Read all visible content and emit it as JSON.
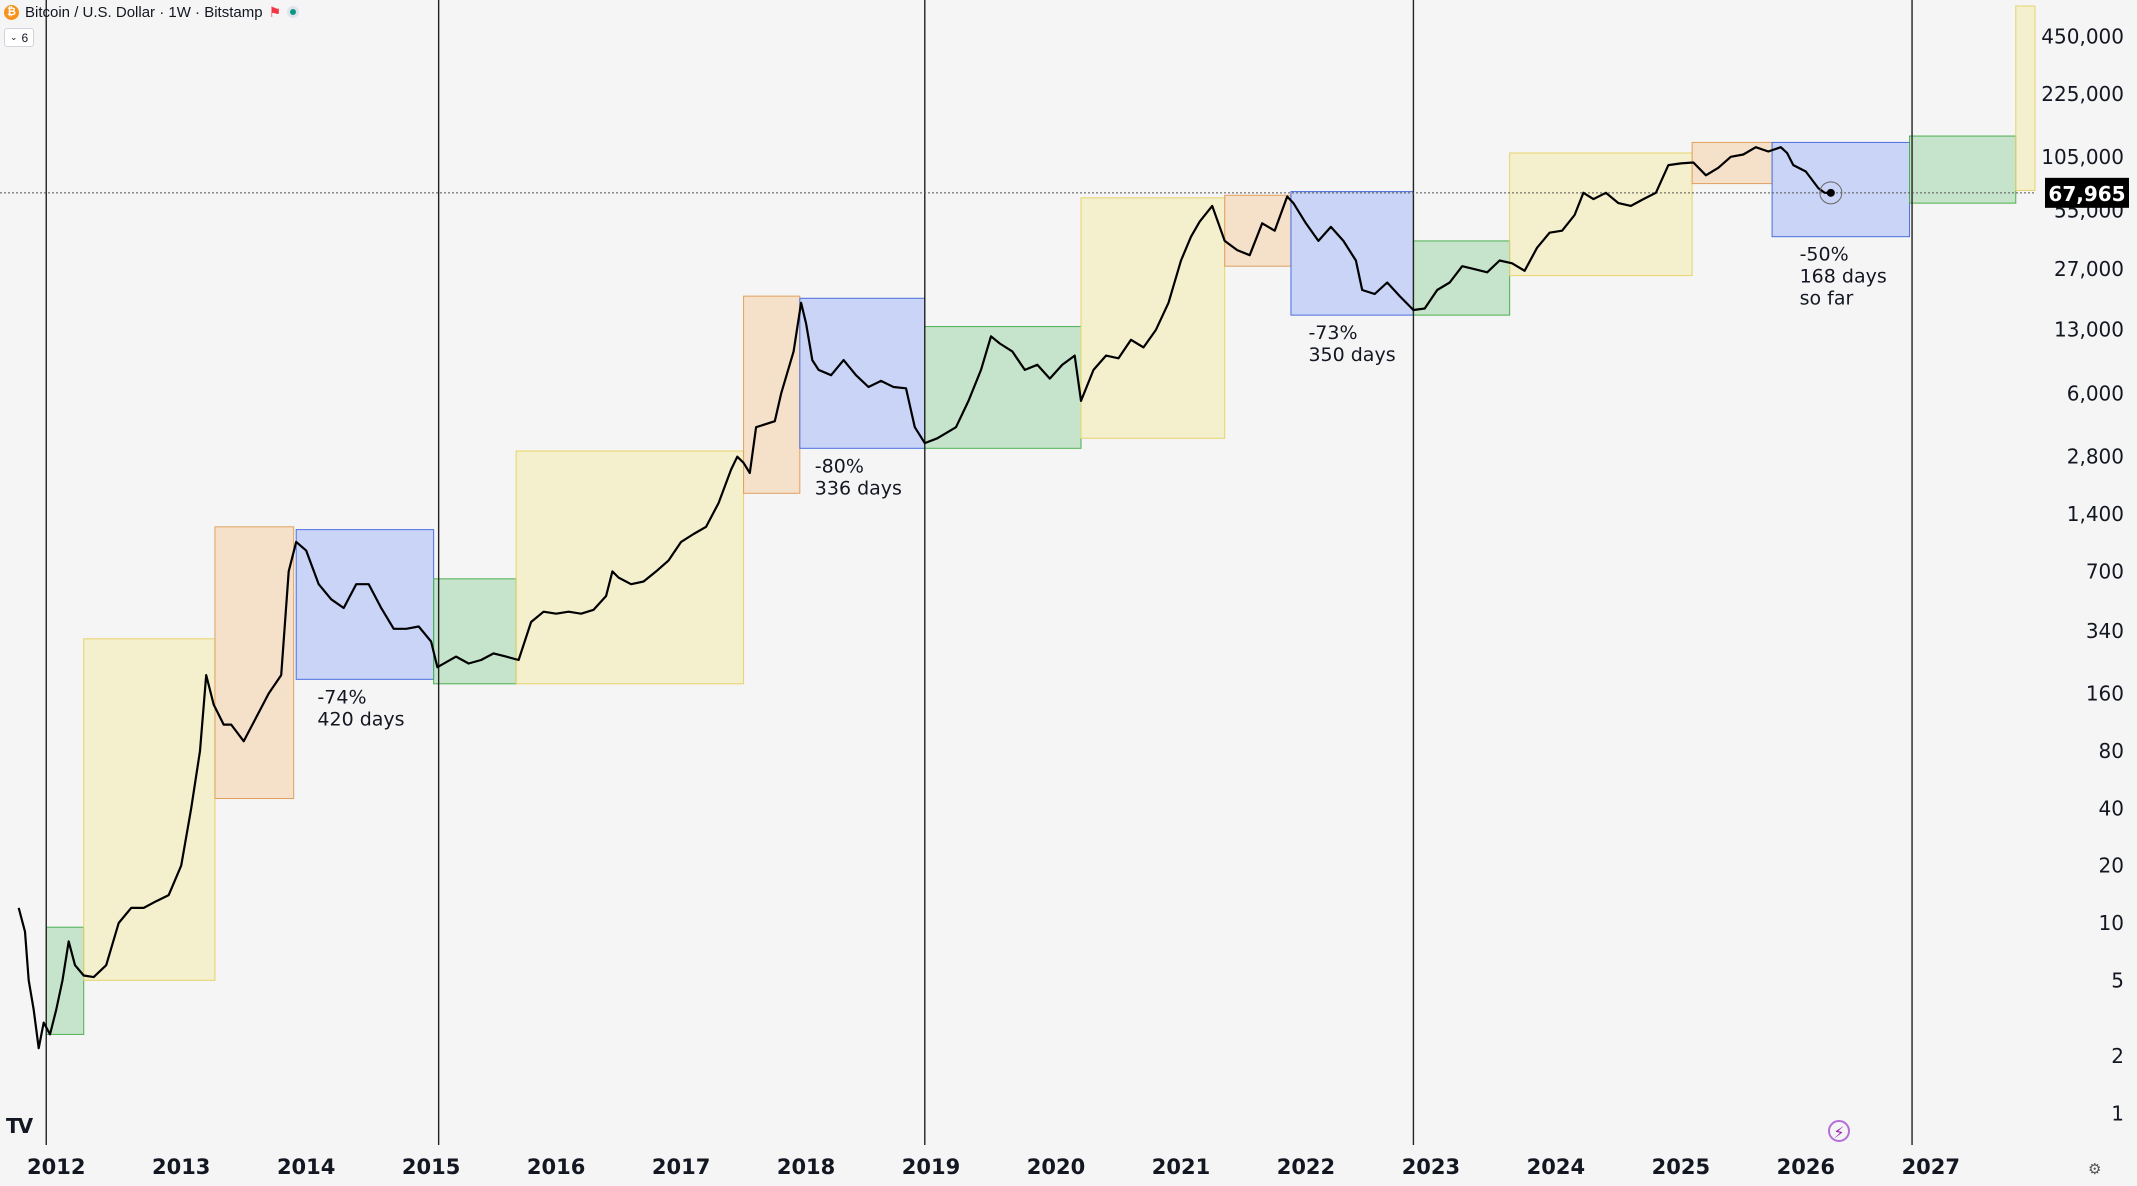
{
  "header": {
    "symbol": "Bitcoin / U.S. Dollar · 1W · Bitstamp",
    "icons": [
      "bitcoin-icon",
      "flag-icon",
      "market-status-icon"
    ],
    "indicator_badge": "6"
  },
  "price_label": "67,965",
  "colors": {
    "green": "#8fd19a",
    "yellow": "#f5eaa0",
    "orange": "#f6c997",
    "blue": "#9fb4f7",
    "price_label_bg": "#000000"
  },
  "chart_data": {
    "type": "line",
    "x_axis": {
      "labels": [
        "2012",
        "2013",
        "2014",
        "2015",
        "2016",
        "2017",
        "2018",
        "2019",
        "2020",
        "2021",
        "2022",
        "2023",
        "2024",
        "2025",
        "2026",
        "2027"
      ],
      "range": [
        2011.55,
        2028.65
      ]
    },
    "y_axis": {
      "scale": "log",
      "range": [
        0.87,
        650000
      ],
      "ticks": [
        1,
        2,
        5,
        10,
        20,
        40,
        80,
        160,
        340,
        700,
        1400,
        2800,
        6000,
        13000,
        27000,
        55000,
        105000,
        225000,
        450000
      ],
      "tick_labels": [
        "1",
        "2",
        "5",
        "10",
        "20",
        "40",
        "80",
        "160",
        "340",
        "700",
        "1,400",
        "2,800",
        "6,000",
        "13,000",
        "27,000",
        "55,000",
        "105,000",
        "225,000",
        "450,000"
      ],
      "current_price": 67965
    },
    "vertical_lines": [
      2011.92,
      2015.06,
      2018.95,
      2022.86,
      2026.85
    ],
    "series": [
      {
        "points": [
          [
            2011.7,
            12
          ],
          [
            2011.75,
            9
          ],
          [
            2011.78,
            5
          ],
          [
            2011.82,
            3.5
          ],
          [
            2011.86,
            2.2
          ],
          [
            2011.9,
            3
          ],
          [
            2011.95,
            2.6
          ],
          [
            2012.0,
            3.5
          ],
          [
            2012.05,
            5
          ],
          [
            2012.1,
            8
          ],
          [
            2012.15,
            6
          ],
          [
            2012.22,
            5.3
          ],
          [
            2012.3,
            5.2
          ],
          [
            2012.4,
            6
          ],
          [
            2012.5,
            10
          ],
          [
            2012.6,
            12
          ],
          [
            2012.7,
            12
          ],
          [
            2012.8,
            13
          ],
          [
            2012.9,
            14
          ],
          [
            2013.0,
            20
          ],
          [
            2013.08,
            40
          ],
          [
            2013.15,
            80
          ],
          [
            2013.2,
            200
          ],
          [
            2013.26,
            140
          ],
          [
            2013.34,
            110
          ],
          [
            2013.4,
            110
          ],
          [
            2013.5,
            90
          ],
          [
            2013.6,
            120
          ],
          [
            2013.7,
            160
          ],
          [
            2013.8,
            200
          ],
          [
            2013.86,
            700
          ],
          [
            2013.92,
            1000
          ],
          [
            2014.0,
            900
          ],
          [
            2014.1,
            600
          ],
          [
            2014.2,
            500
          ],
          [
            2014.3,
            450
          ],
          [
            2014.4,
            600
          ],
          [
            2014.5,
            600
          ],
          [
            2014.6,
            450
          ],
          [
            2014.7,
            350
          ],
          [
            2014.8,
            350
          ],
          [
            2014.9,
            360
          ],
          [
            2015.0,
            300
          ],
          [
            2015.05,
            220
          ],
          [
            2015.2,
            250
          ],
          [
            2015.3,
            230
          ],
          [
            2015.4,
            240
          ],
          [
            2015.5,
            260
          ],
          [
            2015.6,
            250
          ],
          [
            2015.7,
            240
          ],
          [
            2015.8,
            380
          ],
          [
            2015.9,
            430
          ],
          [
            2016.0,
            420
          ],
          [
            2016.1,
            430
          ],
          [
            2016.2,
            420
          ],
          [
            2016.3,
            440
          ],
          [
            2016.4,
            520
          ],
          [
            2016.45,
            700
          ],
          [
            2016.5,
            650
          ],
          [
            2016.6,
            600
          ],
          [
            2016.7,
            620
          ],
          [
            2016.8,
            700
          ],
          [
            2016.9,
            800
          ],
          [
            2017.0,
            1000
          ],
          [
            2017.1,
            1100
          ],
          [
            2017.2,
            1200
          ],
          [
            2017.3,
            1600
          ],
          [
            2017.4,
            2400
          ],
          [
            2017.45,
            2800
          ],
          [
            2017.5,
            2600
          ],
          [
            2017.55,
            2300
          ],
          [
            2017.6,
            4000
          ],
          [
            2017.7,
            4200
          ],
          [
            2017.75,
            4300
          ],
          [
            2017.8,
            6000
          ],
          [
            2017.9,
            10000
          ],
          [
            2017.96,
            18000
          ],
          [
            2018.0,
            14000
          ],
          [
            2018.05,
            9000
          ],
          [
            2018.1,
            8000
          ],
          [
            2018.2,
            7500
          ],
          [
            2018.3,
            9000
          ],
          [
            2018.4,
            7500
          ],
          [
            2018.5,
            6500
          ],
          [
            2018.6,
            7000
          ],
          [
            2018.7,
            6500
          ],
          [
            2018.8,
            6400
          ],
          [
            2018.87,
            4000
          ],
          [
            2018.95,
            3300
          ],
          [
            2019.05,
            3500
          ],
          [
            2019.2,
            4000
          ],
          [
            2019.3,
            5500
          ],
          [
            2019.4,
            8000
          ],
          [
            2019.48,
            12000
          ],
          [
            2019.55,
            11000
          ],
          [
            2019.65,
            10000
          ],
          [
            2019.75,
            8000
          ],
          [
            2019.85,
            8500
          ],
          [
            2019.95,
            7200
          ],
          [
            2020.05,
            8500
          ],
          [
            2020.15,
            9500
          ],
          [
            2020.2,
            5500
          ],
          [
            2020.3,
            8000
          ],
          [
            2020.4,
            9500
          ],
          [
            2020.5,
            9200
          ],
          [
            2020.6,
            11500
          ],
          [
            2020.7,
            10500
          ],
          [
            2020.8,
            13000
          ],
          [
            2020.9,
            18000
          ],
          [
            2021.0,
            30000
          ],
          [
            2021.08,
            40000
          ],
          [
            2021.15,
            48000
          ],
          [
            2021.25,
            58000
          ],
          [
            2021.35,
            38000
          ],
          [
            2021.45,
            34000
          ],
          [
            2021.55,
            32000
          ],
          [
            2021.65,
            47000
          ],
          [
            2021.75,
            43000
          ],
          [
            2021.85,
            65000
          ],
          [
            2021.9,
            60000
          ],
          [
            2022.0,
            47000
          ],
          [
            2022.1,
            38000
          ],
          [
            2022.2,
            45000
          ],
          [
            2022.3,
            38000
          ],
          [
            2022.4,
            30000
          ],
          [
            2022.45,
            21000
          ],
          [
            2022.55,
            20000
          ],
          [
            2022.65,
            23000
          ],
          [
            2022.75,
            19500
          ],
          [
            2022.86,
            16500
          ],
          [
            2022.95,
            16800
          ],
          [
            2023.05,
            21000
          ],
          [
            2023.15,
            23000
          ],
          [
            2023.25,
            28000
          ],
          [
            2023.35,
            27000
          ],
          [
            2023.45,
            26000
          ],
          [
            2023.55,
            30000
          ],
          [
            2023.65,
            29000
          ],
          [
            2023.75,
            26500
          ],
          [
            2023.85,
            35000
          ],
          [
            2023.95,
            42000
          ],
          [
            2024.05,
            43000
          ],
          [
            2024.15,
            52000
          ],
          [
            2024.22,
            68000
          ],
          [
            2024.3,
            63000
          ],
          [
            2024.4,
            68000
          ],
          [
            2024.5,
            60000
          ],
          [
            2024.6,
            58000
          ],
          [
            2024.7,
            63000
          ],
          [
            2024.8,
            68000
          ],
          [
            2024.9,
            95000
          ],
          [
            2025.0,
            97000
          ],
          [
            2025.1,
            98000
          ],
          [
            2025.2,
            84000
          ],
          [
            2025.3,
            92000
          ],
          [
            2025.4,
            105000
          ],
          [
            2025.5,
            108000
          ],
          [
            2025.6,
            118000
          ],
          [
            2025.7,
            112000
          ],
          [
            2025.8,
            118000
          ],
          [
            2025.85,
            110000
          ],
          [
            2025.9,
            95000
          ],
          [
            2026.0,
            88000
          ],
          [
            2026.1,
            72000
          ],
          [
            2026.15,
            68000
          ],
          [
            2026.2,
            67965
          ]
        ]
      }
    ],
    "boxes": [
      {
        "color": "green",
        "x0": 2011.92,
        "x1": 2012.22,
        "y0": 2.6,
        "y1": 9.5
      },
      {
        "color": "yellow",
        "x0": 2012.22,
        "x1": 2013.27,
        "y0": 5,
        "y1": 310
      },
      {
        "color": "orange",
        "x0": 2013.27,
        "x1": 2013.9,
        "y0": 45,
        "y1": 1200
      },
      {
        "color": "blue",
        "x0": 2013.92,
        "x1": 2015.02,
        "y0": 190,
        "y1": 1160
      },
      {
        "color": "green",
        "x0": 2015.02,
        "x1": 2015.68,
        "y0": 180,
        "y1": 640
      },
      {
        "color": "yellow",
        "x0": 2015.68,
        "x1": 2017.5,
        "y0": 180,
        "y1": 3000
      },
      {
        "color": "orange",
        "x0": 2017.5,
        "x1": 2017.95,
        "y0": 1800,
        "y1": 19500
      },
      {
        "color": "blue",
        "x0": 2017.95,
        "x1": 2018.95,
        "y0": 3100,
        "y1": 19000
      },
      {
        "color": "green",
        "x0": 2018.95,
        "x1": 2020.2,
        "y0": 3100,
        "y1": 13500
      },
      {
        "color": "yellow",
        "x0": 2020.2,
        "x1": 2021.35,
        "y0": 3500,
        "y1": 64000
      },
      {
        "color": "orange",
        "x0": 2021.35,
        "x1": 2021.88,
        "y0": 28000,
        "y1": 66000
      },
      {
        "color": "blue",
        "x0": 2021.88,
        "x1": 2022.86,
        "y0": 15500,
        "y1": 69000
      },
      {
        "color": "green",
        "x0": 2022.86,
        "x1": 2023.63,
        "y0": 15500,
        "y1": 38000
      },
      {
        "color": "yellow",
        "x0": 2023.63,
        "x1": 2025.09,
        "y0": 25000,
        "y1": 110000
      },
      {
        "color": "orange",
        "x0": 2025.09,
        "x1": 2025.73,
        "y0": 76000,
        "y1": 125000
      },
      {
        "color": "blue",
        "x0": 2025.73,
        "x1": 2026.83,
        "y0": 40000,
        "y1": 125000
      },
      {
        "color": "green",
        "x0": 2026.83,
        "x1": 2027.68,
        "y0": 60000,
        "y1": 135000
      },
      {
        "color": "yellow",
        "x0": 2027.68,
        "x1": 2028.0,
        "y0": 70000,
        "y1": 650000
      }
    ],
    "annotations": [
      {
        "lines": [
          "-74%",
          "420 days"
        ],
        "x": 2014.09,
        "y": 190
      },
      {
        "lines": [
          "-80%",
          "336 days"
        ],
        "x": 2018.07,
        "y": 3100
      },
      {
        "lines": [
          "-73%",
          "350 days"
        ],
        "x": 2022.02,
        "y": 15500
      },
      {
        "lines": [
          "-50%",
          "168 days",
          "so far"
        ],
        "x": 2025.95,
        "y": 40000
      }
    ]
  }
}
